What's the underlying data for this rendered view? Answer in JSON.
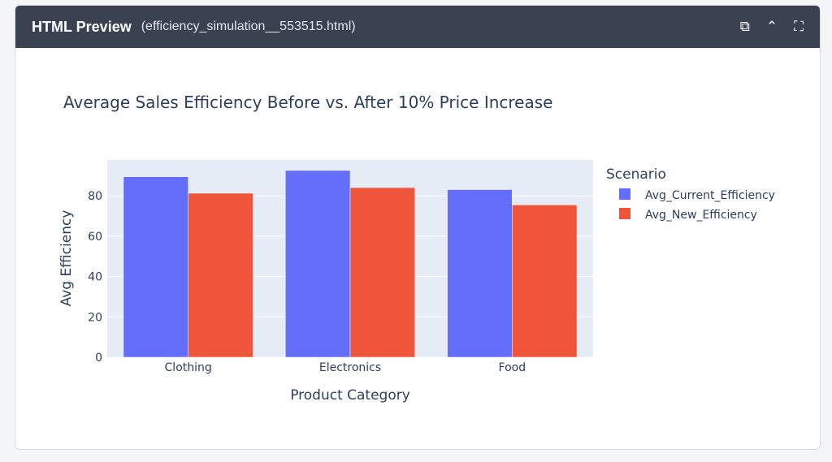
{
  "header": {
    "title": "HTML Preview",
    "file": "(efficiency_simulation__553515.html)",
    "icons": [
      "copy-icon",
      "chevron-up-icon",
      "fullscreen-icon"
    ]
  },
  "chart_data": {
    "type": "bar",
    "title": "Average Sales Efficiency Before vs. After 10% Price Increase",
    "xlabel": "Product Category",
    "ylabel": "Avg Efficiency",
    "categories": [
      "Clothing",
      "Electronics",
      "Food"
    ],
    "series": [
      {
        "name": "Avg_Current_Efficiency",
        "color": "#636efa",
        "values": [
          89.5,
          92.6,
          83.1
        ]
      },
      {
        "name": "Avg_New_Efficiency",
        "color": "#ef553b",
        "values": [
          81.3,
          84.1,
          75.5
        ]
      }
    ],
    "legend_title": "Scenario",
    "legend_position": "right",
    "ylim": [
      0,
      97.8
    ],
    "yticks": [
      0,
      20,
      40,
      60,
      80
    ],
    "grid": true
  }
}
